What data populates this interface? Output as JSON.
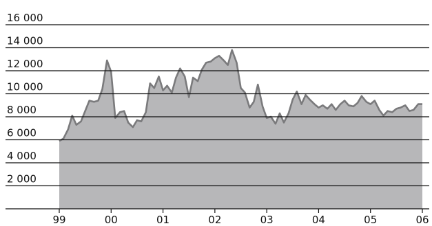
{
  "chart_data": {
    "type": "area",
    "title": "",
    "xlabel": "",
    "ylabel": "",
    "ylim": [
      0,
      16000
    ],
    "yticks": [
      {
        "value": 0,
        "label": ""
      },
      {
        "value": 2000,
        "label": "2 000"
      },
      {
        "value": 4000,
        "label": "4 000"
      },
      {
        "value": 6000,
        "label": "6 000"
      },
      {
        "value": 8000,
        "label": "8 000"
      },
      {
        "value": 10000,
        "label": "10 000"
      },
      {
        "value": 12000,
        "label": "12 000"
      },
      {
        "value": 14000,
        "label": "14 000"
      },
      {
        "value": 16000,
        "label": "16 000"
      }
    ],
    "xlim": [
      1999.0,
      2006.0
    ],
    "xticks": [
      {
        "value": 1999,
        "label": "99"
      },
      {
        "value": 2000,
        "label": "00"
      },
      {
        "value": 2001,
        "label": "01"
      },
      {
        "value": 2002,
        "label": "02"
      },
      {
        "value": 2003,
        "label": "03"
      },
      {
        "value": 2004,
        "label": "04"
      },
      {
        "value": 2005,
        "label": "05"
      },
      {
        "value": 2006,
        "label": "06"
      }
    ],
    "grid": "horizontal",
    "colors": {
      "fill": "#b7b7b9",
      "line": "#7a7a7c",
      "grid": "#111111"
    },
    "series": [
      {
        "x": [
          1999.0,
          1999.08,
          1999.17,
          1999.25,
          1999.33,
          1999.42,
          1999.5,
          1999.58,
          1999.67,
          1999.75,
          1999.83,
          1999.92,
          2000.0,
          2000.08,
          2000.17,
          2000.25,
          2000.33,
          2000.42,
          2000.5,
          2000.58,
          2000.67,
          2000.75,
          2000.83,
          2000.92,
          2001.0,
          2001.08,
          2001.17,
          2001.25,
          2001.33,
          2001.42,
          2001.5,
          2001.58,
          2001.67,
          2001.75,
          2001.83,
          2001.92,
          2002.0,
          2002.08,
          2002.17,
          2002.25,
          2002.33,
          2002.42,
          2002.5,
          2002.58,
          2002.67,
          2002.75,
          2002.83,
          2002.92,
          2003.0,
          2003.08,
          2003.17,
          2003.25,
          2003.33,
          2003.42,
          2003.5,
          2003.58,
          2003.67,
          2003.75,
          2003.83,
          2003.92,
          2004.0,
          2004.08,
          2004.17,
          2004.25,
          2004.33,
          2004.42,
          2004.5,
          2004.58,
          2004.67,
          2004.75,
          2004.83,
          2004.92,
          2005.0,
          2005.08,
          2005.17,
          2005.25,
          2005.33,
          2005.42,
          2005.5,
          2005.58,
          2005.67,
          2005.75,
          2005.83,
          2005.92,
          2006.0
        ],
        "values": [
          5900,
          6100,
          6900,
          8100,
          7300,
          7600,
          8500,
          9400,
          9300,
          9400,
          10400,
          12900,
          11900,
          7900,
          8400,
          8500,
          7500,
          7100,
          7700,
          7600,
          8400,
          10900,
          10500,
          11500,
          10300,
          10700,
          10100,
          11400,
          12200,
          11500,
          9700,
          11400,
          11100,
          12100,
          12700,
          12800,
          13100,
          13300,
          12900,
          12500,
          13800,
          12700,
          10500,
          10100,
          8800,
          9300,
          10800,
          8900,
          7900,
          8000,
          7400,
          8300,
          7500,
          8300,
          9500,
          10200,
          9100,
          9900,
          9500,
          9100,
          8800,
          9000,
          8700,
          9100,
          8600,
          9100,
          9400,
          9000,
          8900,
          9200,
          9800,
          9300,
          9100,
          9400,
          8600,
          8100,
          8500,
          8400,
          8700,
          8800,
          9000,
          8500,
          8600,
          9100,
          9100
        ]
      }
    ]
  }
}
